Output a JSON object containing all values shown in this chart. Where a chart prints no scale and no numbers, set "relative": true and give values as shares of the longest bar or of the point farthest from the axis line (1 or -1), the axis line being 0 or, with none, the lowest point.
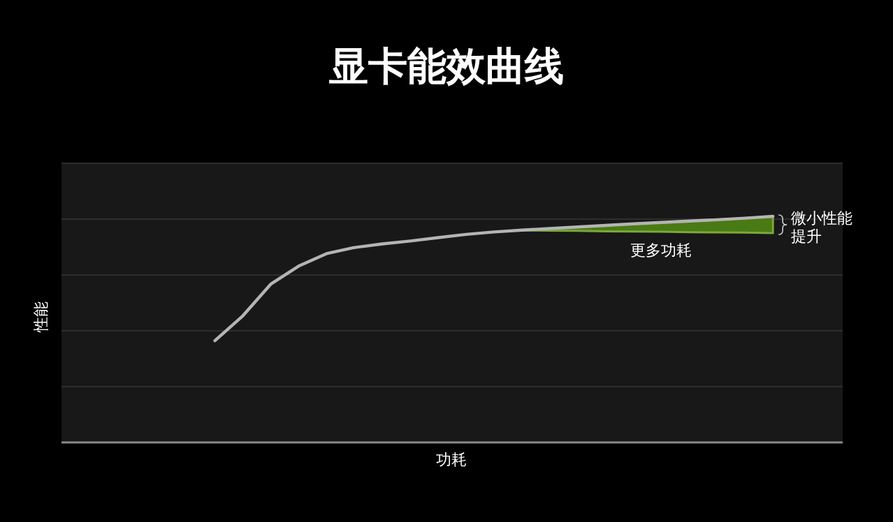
{
  "chart_data": {
    "type": "line",
    "title": "显卡能效曲线",
    "xlabel": "功耗",
    "ylabel": "性能",
    "relative": true,
    "grid": "y",
    "categories": [
      null,
      null,
      null,
      null,
      null,
      null,
      null,
      null,
      null,
      null,
      null,
      null,
      null,
      null,
      null,
      null,
      null,
      null,
      null,
      null,
      null,
      null,
      null,
      null,
      null,
      null,
      null,
      null
    ],
    "series": [
      {
        "color": "#b4b4b4",
        "values": [
          null,
          null,
          null,
          null,
          null,
          0.45,
          0.56,
          0.7,
          0.78,
          0.835,
          0.862,
          0.878,
          0.891,
          0.906,
          0.92,
          0.931,
          0.939,
          0.946,
          0.953,
          0.96,
          0.967,
          0.973,
          0.979,
          0.985,
          0.992,
          1.0,
          null,
          null
        ],
        "lower": [
          null,
          null,
          null,
          null,
          null,
          null,
          null,
          null,
          null,
          null,
          null,
          null,
          null,
          null,
          null,
          null,
          0.938,
          0.937,
          0.936,
          0.934,
          0.933,
          0.932,
          0.93,
          0.929,
          0.928,
          0.926,
          null,
          null
        ],
        "upper": [
          null,
          null,
          null,
          null,
          null,
          null,
          null,
          null,
          null,
          null,
          null,
          null,
          null,
          null,
          null,
          null,
          0.939,
          0.946,
          0.953,
          0.96,
          0.967,
          0.973,
          0.979,
          0.985,
          0.992,
          1.0,
          null,
          null
        ]
      }
    ],
    "annotations": [
      "微小性能提升",
      "更多功耗"
    ]
  }
}
